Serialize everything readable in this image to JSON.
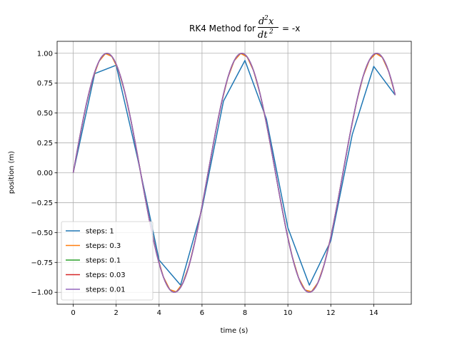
{
  "chart_data": {
    "type": "line",
    "title": {
      "prefix": "RK4 Method for",
      "num_d": "d",
      "num_exp": "2",
      "num_var": "x",
      "den_d": "dt",
      "den_exp": "2",
      "suffix": "= -x"
    },
    "xlabel": "time (s)",
    "ylabel": "position (m)",
    "xlim": [
      -0.75,
      15.75
    ],
    "ylim": [
      -1.1,
      1.1
    ],
    "xticks": [
      0,
      2,
      4,
      6,
      8,
      10,
      12,
      14
    ],
    "xtick_labels": [
      "0",
      "2",
      "4",
      "6",
      "8",
      "10",
      "12",
      "14"
    ],
    "yticks": [
      -1.0,
      -0.75,
      -0.5,
      -0.25,
      0.0,
      0.25,
      0.5,
      0.75,
      1.0
    ],
    "ytick_labels": [
      "−1.00",
      "−0.75",
      "−0.50",
      "−0.25",
      "0.00",
      "0.25",
      "0.50",
      "0.75",
      "1.00"
    ],
    "grid": true,
    "legend_position": "lower-left",
    "series": [
      {
        "name": "steps: 1",
        "color": "#1f77b4",
        "x": [
          0,
          1,
          2,
          3,
          4,
          5,
          6,
          7,
          8,
          9,
          10,
          11,
          12,
          13,
          14,
          15
        ],
        "y": [
          0.0,
          0.83,
          0.9,
          0.12,
          -0.73,
          -0.94,
          -0.3,
          0.6,
          0.94,
          0.45,
          -0.46,
          -0.94,
          -0.57,
          0.32,
          0.89,
          0.65
        ]
      },
      {
        "name": "steps: 0.3",
        "color": "#ff7f0e",
        "step": 0.3,
        "x_end": 15
      },
      {
        "name": "steps: 0.1",
        "color": "#2ca02c",
        "step": 0.1,
        "x_end": 15
      },
      {
        "name": "steps: 0.03",
        "color": "#d62728",
        "step": 0.03,
        "x_end": 15
      },
      {
        "name": "steps: 0.01",
        "color": "#9467bd",
        "step": 0.01,
        "x_end": 15
      }
    ]
  }
}
